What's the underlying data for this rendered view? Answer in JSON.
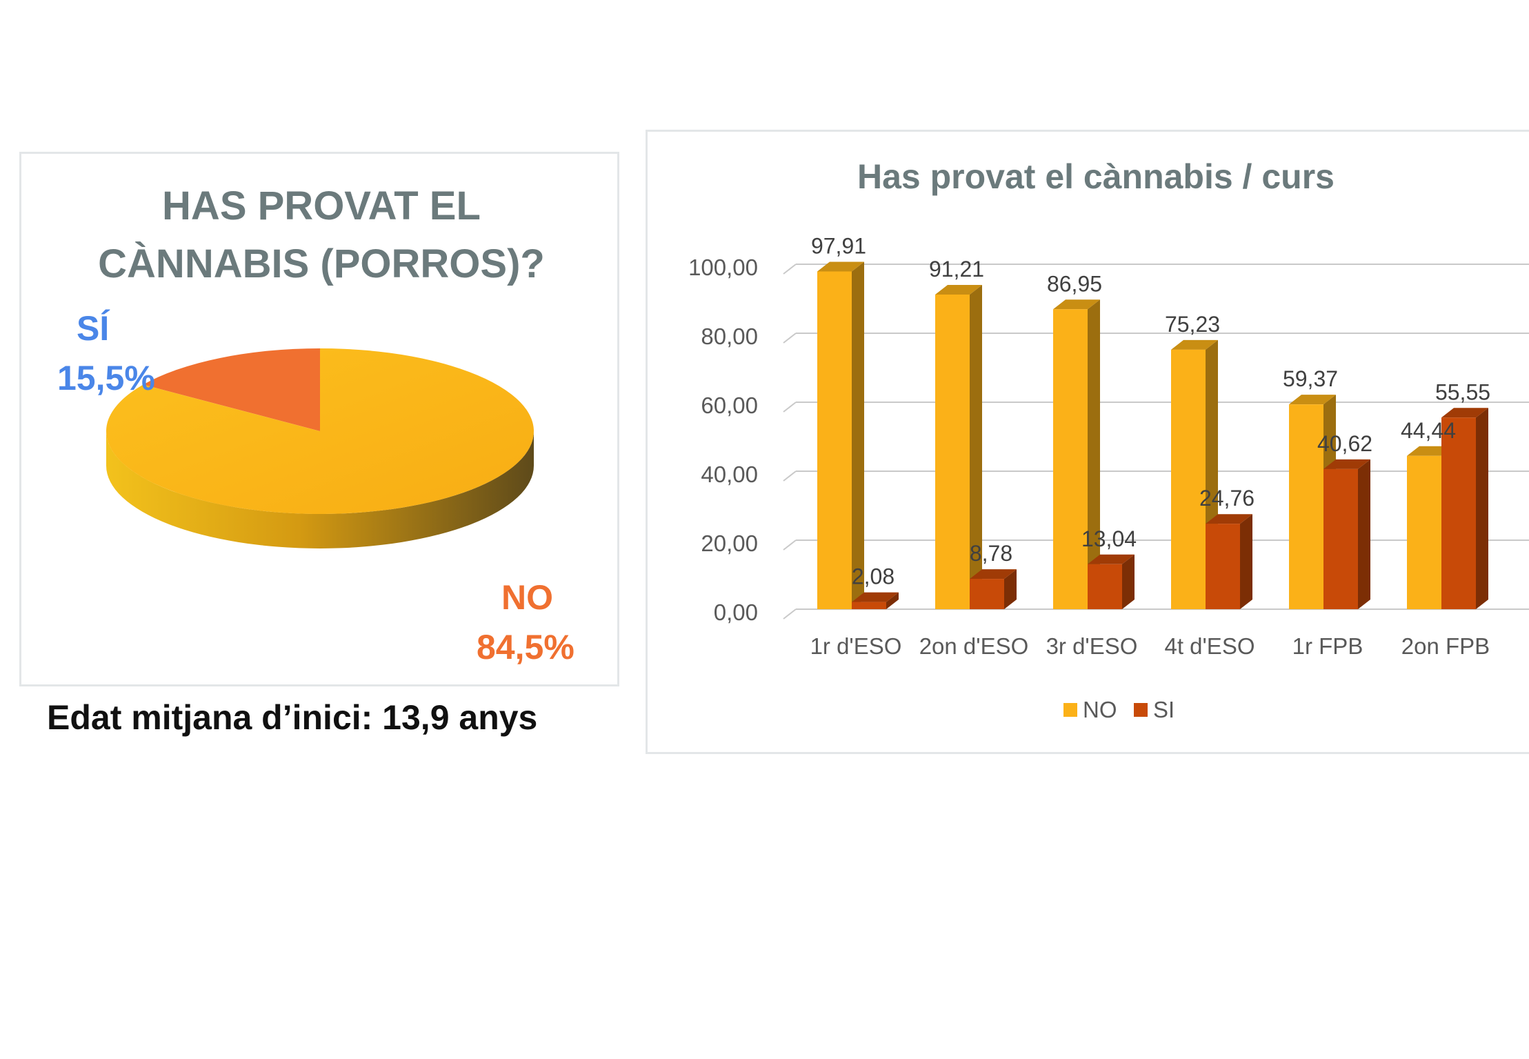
{
  "pie": {
    "title_line1": "HAS PROVAT EL",
    "title_line2": "CÀNNABIS (PORROS)?",
    "si_label": "SÍ",
    "si_value": "15,5%",
    "no_label": "NO",
    "no_value": "84,5%",
    "footnote": "Edat mitjana d’inici: 13,9 anys"
  },
  "bar": {
    "title": "Has provat el cànnabis / curs"
  },
  "chart_data": [
    {
      "type": "pie",
      "title": "HAS PROVAT EL CÀNNABIS (PORROS)?",
      "slices": [
        {
          "label": "SÍ",
          "value": 15.5,
          "color": "#f07030"
        },
        {
          "label": "NO",
          "value": 84.5,
          "color": "#fbb118"
        }
      ]
    },
    {
      "type": "bar",
      "title": "Has provat el cànnabis / curs",
      "categories": [
        "1r d'ESO",
        "2on d'ESO",
        "3r d'ESO",
        "4t d'ESO",
        "1r FPB",
        "2on FPB"
      ],
      "series": [
        {
          "name": "NO",
          "values": [
            97.91,
            91.21,
            86.95,
            75.23,
            59.37,
            44.44
          ],
          "labels": [
            "97,91",
            "91,21",
            "86,95",
            "75,23",
            "59,37",
            "44,44"
          ],
          "color": "#fbb118"
        },
        {
          "name": "SI",
          "values": [
            2.08,
            8.78,
            13.04,
            24.76,
            40.62,
            55.55
          ],
          "labels": [
            "2,08",
            "8,78",
            "13,04",
            "24,76",
            "40,62",
            "55,55"
          ],
          "color": "#c84a08"
        }
      ],
      "yticks": [
        "0,00",
        "20,00",
        "40,00",
        "60,00",
        "80,00",
        "100,00"
      ],
      "ylim": [
        0,
        100
      ],
      "legend": "bottom",
      "grid": true
    }
  ]
}
